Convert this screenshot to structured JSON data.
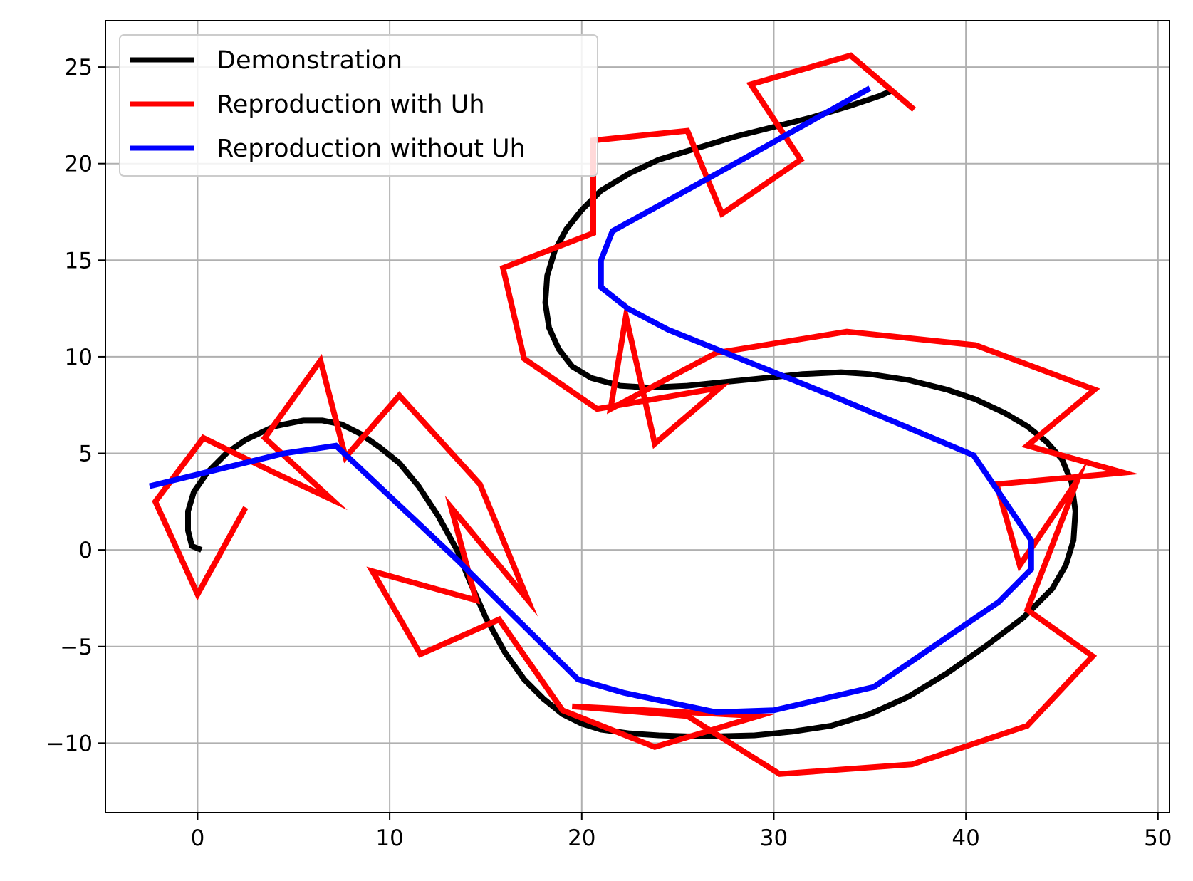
{
  "chart_data": {
    "type": "line",
    "title": "",
    "xlabel": "",
    "ylabel": "",
    "xlim": [
      -4.8,
      50.6
    ],
    "ylim": [
      -13.6,
      27.4
    ],
    "xticks": [
      0,
      10,
      20,
      30,
      40,
      50
    ],
    "yticks": [
      -10,
      -5,
      0,
      5,
      10,
      15,
      20,
      25
    ],
    "grid": true,
    "legend_position": "top-left",
    "series": [
      {
        "name": "Demonstration",
        "color": "#000000",
        "points": [
          [
            0.2,
            0
          ],
          [
            -0.3,
            0.2
          ],
          [
            -0.5,
            1
          ],
          [
            -0.5,
            2
          ],
          [
            -0.2,
            3
          ],
          [
            0.5,
            4
          ],
          [
            1.5,
            5
          ],
          [
            2.5,
            5.7
          ],
          [
            4,
            6.4
          ],
          [
            5.5,
            6.7
          ],
          [
            6.5,
            6.7
          ],
          [
            7.5,
            6.5
          ],
          [
            8.5,
            6
          ],
          [
            9.5,
            5.3
          ],
          [
            10.5,
            4.5
          ],
          [
            11.5,
            3.3
          ],
          [
            12.5,
            1.8
          ],
          [
            13.5,
            0
          ],
          [
            14.2,
            -1.7
          ],
          [
            15,
            -3.5
          ],
          [
            16,
            -5.3
          ],
          [
            17,
            -6.7
          ],
          [
            18,
            -7.7
          ],
          [
            19,
            -8.5
          ],
          [
            20,
            -9
          ],
          [
            21,
            -9.3
          ],
          [
            22.5,
            -9.5
          ],
          [
            24,
            -9.6
          ],
          [
            25.5,
            -9.65
          ],
          [
            27,
            -9.65
          ],
          [
            29,
            -9.6
          ],
          [
            31,
            -9.4
          ],
          [
            33,
            -9.1
          ],
          [
            35,
            -8.5
          ],
          [
            37,
            -7.6
          ],
          [
            39,
            -6.4
          ],
          [
            41,
            -5
          ],
          [
            43,
            -3.5
          ],
          [
            44.5,
            -2
          ],
          [
            45.2,
            -0.8
          ],
          [
            45.6,
            0.5
          ],
          [
            45.7,
            2
          ],
          [
            45.5,
            3.5
          ],
          [
            45,
            4.7
          ],
          [
            44.2,
            5.6
          ],
          [
            43.2,
            6.4
          ],
          [
            42,
            7.1
          ],
          [
            40.5,
            7.8
          ],
          [
            39,
            8.3
          ],
          [
            37,
            8.8
          ],
          [
            35,
            9.1
          ],
          [
            33.5,
            9.2
          ],
          [
            31.5,
            9.1
          ],
          [
            29.5,
            8.9
          ],
          [
            27.5,
            8.7
          ],
          [
            25.5,
            8.5
          ],
          [
            23.5,
            8.4
          ],
          [
            22,
            8.5
          ],
          [
            20.5,
            8.9
          ],
          [
            19.5,
            9.5
          ],
          [
            18.8,
            10.4
          ],
          [
            18.3,
            11.5
          ],
          [
            18.1,
            12.8
          ],
          [
            18.2,
            14.2
          ],
          [
            18.6,
            15.5
          ],
          [
            19.2,
            16.6
          ],
          [
            20,
            17.6
          ],
          [
            21,
            18.6
          ],
          [
            22.5,
            19.5
          ],
          [
            24,
            20.2
          ],
          [
            26,
            20.8
          ],
          [
            28,
            21.4
          ],
          [
            30,
            21.9
          ],
          [
            32,
            22.4
          ],
          [
            34,
            23
          ],
          [
            35.5,
            23.5
          ],
          [
            36.2,
            23.8
          ]
        ]
      },
      {
        "name": "Reproduction with Uh",
        "color": "#ff0000",
        "points": [
          [
            2.5,
            2.2
          ],
          [
            0,
            -2.3
          ],
          [
            -2.2,
            2.5
          ],
          [
            0.3,
            5.8
          ],
          [
            4,
            4
          ],
          [
            7,
            2.6
          ],
          [
            3.5,
            5.8
          ],
          [
            6.4,
            9.8
          ],
          [
            7.7,
            4.8
          ],
          [
            10.5,
            8
          ],
          [
            14.7,
            3.4
          ],
          [
            17.2,
            -2.6
          ],
          [
            13.2,
            2.2
          ],
          [
            14.5,
            -2.6
          ],
          [
            9.1,
            -1.1
          ],
          [
            11.6,
            -5.4
          ],
          [
            15.7,
            -3.6
          ],
          [
            19,
            -8.3
          ],
          [
            23.8,
            -10.2
          ],
          [
            29.2,
            -8.6
          ],
          [
            19.5,
            -8.1
          ],
          [
            25.5,
            -8.6
          ],
          [
            30.3,
            -11.6
          ],
          [
            37.2,
            -11.1
          ],
          [
            43.2,
            -9.1
          ],
          [
            46.6,
            -5.5
          ],
          [
            43.2,
            -3.1
          ],
          [
            45.8,
            3.6
          ],
          [
            42.8,
            -0.8
          ],
          [
            41.6,
            3.4
          ],
          [
            48.2,
            4
          ],
          [
            43.2,
            5.4
          ],
          [
            46.7,
            8.3
          ],
          [
            40.5,
            10.6
          ],
          [
            33.8,
            11.3
          ],
          [
            27,
            10.2
          ],
          [
            21.5,
            7.3
          ],
          [
            22.3,
            12.1
          ],
          [
            23.8,
            5.5
          ],
          [
            27.2,
            8.4
          ],
          [
            20.8,
            7.3
          ],
          [
            17,
            9.9
          ],
          [
            15.9,
            14.6
          ],
          [
            20.6,
            16.4
          ],
          [
            20.6,
            21.2
          ],
          [
            25.5,
            21.7
          ],
          [
            27.3,
            17.4
          ],
          [
            31.4,
            20.2
          ],
          [
            28.8,
            24.1
          ],
          [
            34,
            25.6
          ],
          [
            37.3,
            22.8
          ]
        ]
      },
      {
        "name": "Reproduction without Uh",
        "color": "#0000ff",
        "points": [
          [
            -2.5,
            3.3
          ],
          [
            4.5,
            5
          ],
          [
            7.2,
            5.4
          ],
          [
            13.5,
            -0.5
          ],
          [
            19.8,
            -6.7
          ],
          [
            22.2,
            -7.4
          ],
          [
            27,
            -8.4
          ],
          [
            30,
            -8.3
          ],
          [
            35.2,
            -7.1
          ],
          [
            41.7,
            -2.7
          ],
          [
            43.4,
            -1
          ],
          [
            43.4,
            0.5
          ],
          [
            41.7,
            3
          ],
          [
            40.4,
            4.9
          ],
          [
            33,
            8
          ],
          [
            24.5,
            11.4
          ],
          [
            22.4,
            12.5
          ],
          [
            21,
            13.6
          ],
          [
            21,
            15
          ],
          [
            21.6,
            16.5
          ],
          [
            28.7,
            20.4
          ],
          [
            35,
            23.9
          ]
        ]
      }
    ]
  }
}
